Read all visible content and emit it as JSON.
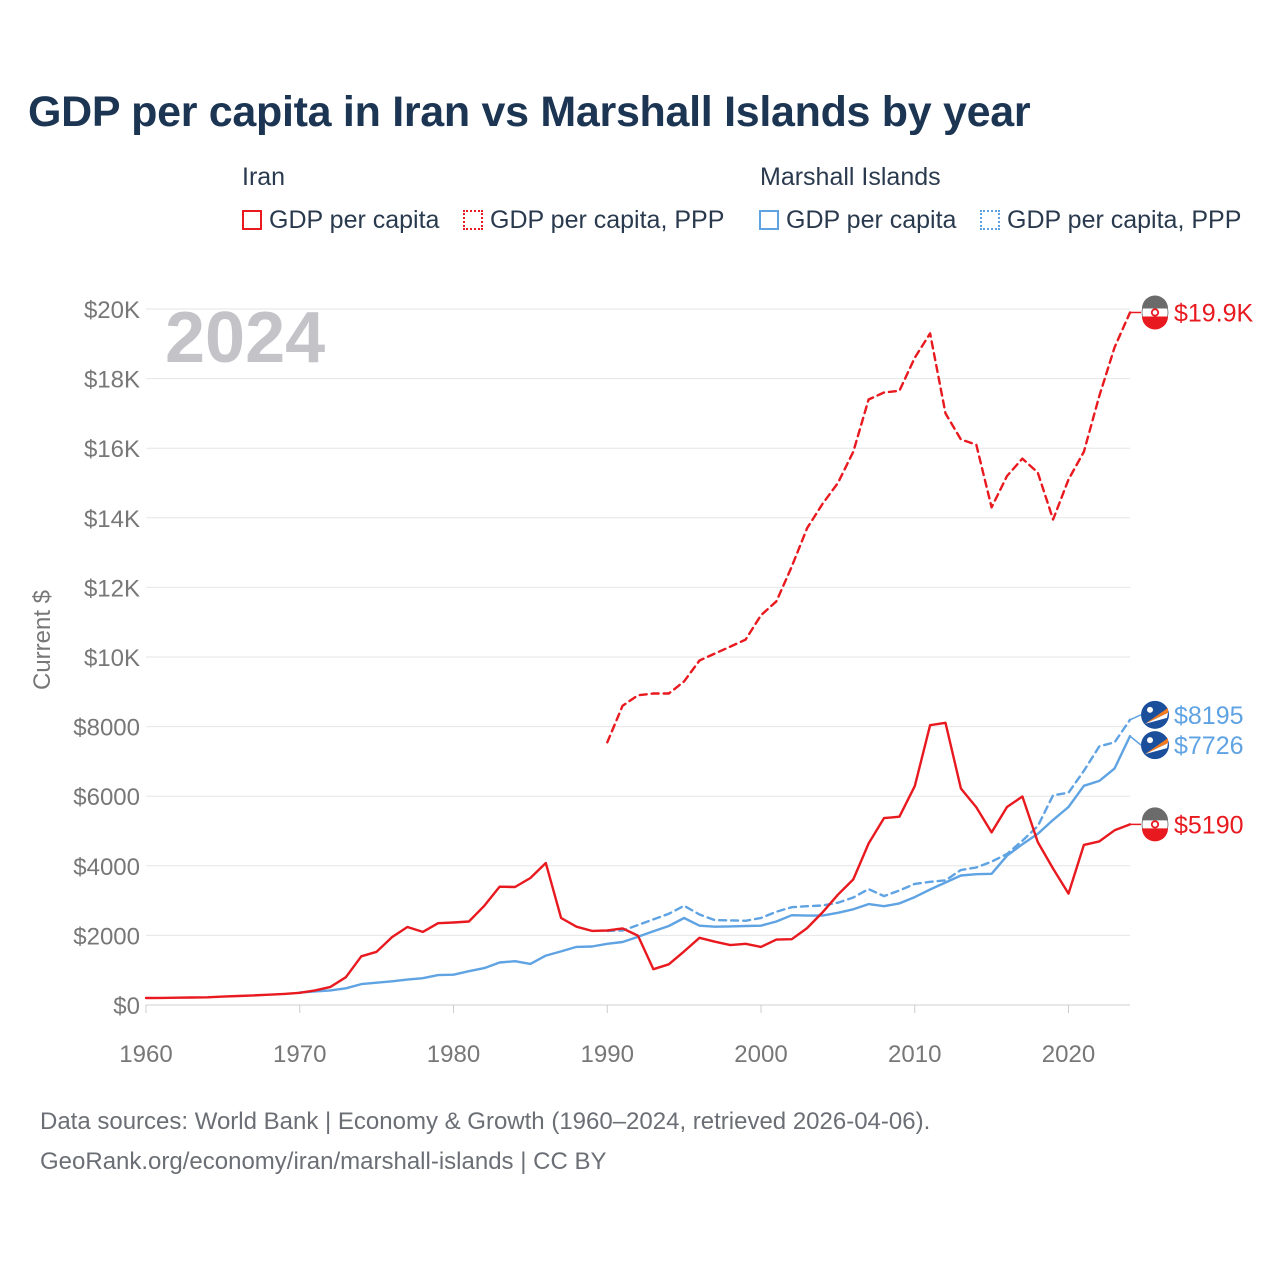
{
  "title": "GDP per capita in Iran vs Marshall Islands by year",
  "legend": {
    "iran_label": "Iran",
    "mh_label": "Marshall Islands",
    "iran_gdp": "GDP per capita",
    "iran_ppp": "GDP per capita, PPP",
    "mh_gdp": "GDP per capita",
    "mh_ppp": "GDP per capita, PPP"
  },
  "year_label": "2024",
  "footer": {
    "line1": "Data sources: World Bank | Economy & Growth (1960–2024, retrieved 2026-04-06).",
    "line2": "GeoRank.org/economy/iran/marshall-islands | CC BY"
  },
  "colors": {
    "iran": "#e8191f",
    "marshall": "#5fa3e3",
    "grid": "#e6e6e6",
    "axis_text": "#777777"
  },
  "chart_data": {
    "type": "line",
    "title": "GDP per capita in Iran vs Marshall Islands by year",
    "xlabel": "",
    "ylabel": "Current $",
    "xlim": [
      1960,
      2024
    ],
    "ylim": [
      0,
      20000
    ],
    "x_ticks": [
      1960,
      1970,
      1980,
      1990,
      2000,
      2010,
      2020
    ],
    "x_tick_labels": [
      "1960",
      "1970",
      "1980",
      "1990",
      "2000",
      "2010",
      "2020"
    ],
    "y_ticks": [
      0,
      2000,
      4000,
      6000,
      8000,
      10000,
      12000,
      14000,
      16000,
      18000,
      20000
    ],
    "y_tick_labels": [
      "$0",
      "$2000",
      "$4000",
      "$6000",
      "$8000",
      "$10K",
      "$12K",
      "$14K",
      "$16K",
      "$18K",
      "$20K"
    ],
    "series": [
      {
        "name": "Iran GDP per capita",
        "style": "solid",
        "color": "#e8191f",
        "end_label": "$5190",
        "flag": "iran",
        "x": [
          1960,
          1961,
          1962,
          1963,
          1964,
          1965,
          1966,
          1967,
          1968,
          1969,
          1970,
          1971,
          1972,
          1973,
          1974,
          1975,
          1976,
          1977,
          1978,
          1979,
          1980,
          1981,
          1982,
          1983,
          1984,
          1985,
          1986,
          1987,
          1988,
          1989,
          1990,
          1991,
          1992,
          1993,
          1994,
          1995,
          1996,
          1997,
          1998,
          1999,
          2000,
          2001,
          2002,
          2003,
          2004,
          2005,
          2006,
          2007,
          2008,
          2009,
          2010,
          2011,
          2012,
          2013,
          2014,
          2015,
          2016,
          2017,
          2018,
          2019,
          2020,
          2021,
          2022,
          2023,
          2024
        ],
        "values": [
          200,
          205,
          210,
          215,
          220,
          240,
          260,
          275,
          295,
          320,
          350,
          420,
          520,
          800,
          1400,
          1530,
          1950,
          2240,
          2100,
          2350,
          2370,
          2400,
          2850,
          3400,
          3390,
          3650,
          4080,
          2500,
          2250,
          2130,
          2140,
          2200,
          1990,
          1030,
          1170,
          1540,
          1930,
          1820,
          1720,
          1760,
          1670,
          1880,
          1890,
          2210,
          2660,
          3170,
          3610,
          4640,
          5370,
          5410,
          6290,
          8040,
          8110,
          6220,
          5680,
          4960,
          5690,
          5990,
          4680,
          3920,
          3200,
          4600,
          4700,
          5020,
          5190
        ]
      },
      {
        "name": "Iran GDP per capita, PPP",
        "style": "dashed",
        "color": "#e8191f",
        "end_label": "$19.9K",
        "flag": "iran",
        "x": [
          1990,
          1991,
          1992,
          1993,
          1994,
          1995,
          1996,
          1997,
          1998,
          1999,
          2000,
          2001,
          2002,
          2003,
          2004,
          2005,
          2006,
          2007,
          2008,
          2009,
          2010,
          2011,
          2012,
          2013,
          2014,
          2015,
          2016,
          2017,
          2018,
          2019,
          2020,
          2021,
          2022,
          2023,
          2024
        ],
        "values": [
          7550,
          8600,
          8900,
          8950,
          8950,
          9300,
          9900,
          10100,
          10300,
          10500,
          11200,
          11600,
          12600,
          13700,
          14400,
          15000,
          15900,
          17400,
          17600,
          17650,
          18600,
          19300,
          17000,
          16250,
          16100,
          14300,
          15200,
          15700,
          15300,
          13950,
          15100,
          15900,
          17500,
          18900,
          19900
        ]
      },
      {
        "name": "Marshall Islands GDP per capita",
        "style": "solid",
        "color": "#5fa3e3",
        "end_label": "$7726",
        "flag": "marshall",
        "x": [
          1970,
          1971,
          1972,
          1973,
          1974,
          1975,
          1976,
          1977,
          1978,
          1979,
          1980,
          1981,
          1982,
          1983,
          1984,
          1985,
          1986,
          1987,
          1988,
          1989,
          1990,
          1991,
          1992,
          1993,
          1994,
          1995,
          1996,
          1997,
          1998,
          1999,
          2000,
          2001,
          2002,
          2003,
          2004,
          2005,
          2006,
          2007,
          2008,
          2009,
          2010,
          2011,
          2012,
          2013,
          2014,
          2015,
          2016,
          2017,
          2018,
          2019,
          2020,
          2021,
          2022,
          2023,
          2024
        ],
        "values": [
          360,
          390,
          420,
          480,
          600,
          640,
          680,
          730,
          770,
          860,
          870,
          970,
          1060,
          1220,
          1260,
          1180,
          1420,
          1540,
          1670,
          1680,
          1760,
          1810,
          1960,
          2120,
          2270,
          2500,
          2280,
          2250,
          2260,
          2270,
          2280,
          2400,
          2580,
          2570,
          2570,
          2650,
          2750,
          2900,
          2840,
          2920,
          3100,
          3320,
          3520,
          3720,
          3760,
          3770,
          4290,
          4620,
          4920,
          5320,
          5690,
          6300,
          6440,
          6800,
          7726
        ]
      },
      {
        "name": "Marshall Islands GDP per capita, PPP",
        "style": "dashed",
        "color": "#5fa3e3",
        "end_label": "$8195",
        "flag": "marshall",
        "x": [
          1990,
          1991,
          1992,
          1993,
          1994,
          1995,
          1996,
          1997,
          1998,
          1999,
          2000,
          2001,
          2002,
          2003,
          2004,
          2005,
          2006,
          2007,
          2008,
          2009,
          2010,
          2011,
          2012,
          2013,
          2014,
          2015,
          2016,
          2017,
          2018,
          2019,
          2020,
          2021,
          2022,
          2023,
          2024
        ],
        "values": [
          2130,
          2140,
          2300,
          2460,
          2620,
          2850,
          2600,
          2440,
          2430,
          2420,
          2500,
          2680,
          2810,
          2840,
          2860,
          2940,
          3090,
          3330,
          3130,
          3290,
          3480,
          3540,
          3580,
          3880,
          3950,
          4120,
          4340,
          4720,
          5140,
          6030,
          6100,
          6730,
          7430,
          7550,
          8195
        ]
      }
    ]
  }
}
